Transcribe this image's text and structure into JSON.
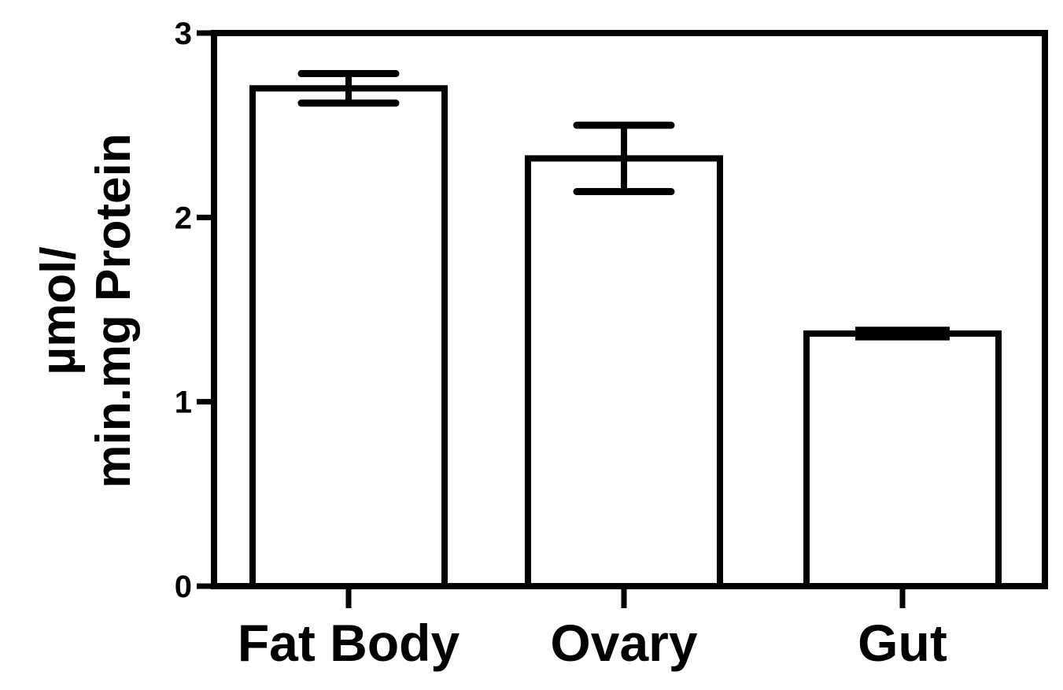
{
  "chart_data": {
    "type": "bar",
    "categories": [
      "Fat Body",
      "Ovary",
      "Gut"
    ],
    "values": [
      2.7,
      2.32,
      1.37
    ],
    "error": [
      0.08,
      0.18,
      0.02
    ],
    "ylabel_lines": [
      "µmol/",
      "min.mg Protein"
    ],
    "xlabel": "",
    "ylim": [
      0,
      3
    ],
    "yticks": [
      0,
      1,
      2,
      3
    ],
    "ytick_labels": [
      "0",
      "1",
      "2",
      "3"
    ],
    "grid": false,
    "legend": "none",
    "bar_fill": "#ffffff",
    "stroke_color": "#000000"
  }
}
